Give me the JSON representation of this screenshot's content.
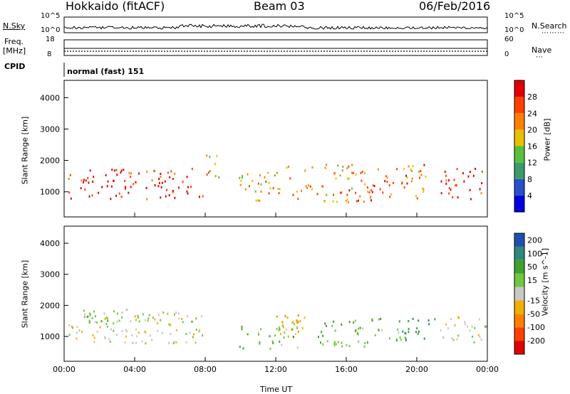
{
  "header": {
    "station": "Hokkaido (fitACF)",
    "beam": "Beam 03",
    "date": "06/Feb/2016"
  },
  "top_panels": {
    "nsky_label": "N.Sky",
    "nsky_ticks": [
      "10^5",
      "10^0"
    ],
    "nsearch_label": "N.Search",
    "nsearch_ticks": [
      "10^5",
      "10^0"
    ],
    "freq_label": "Freq.",
    "freq_unit": "[MHz]",
    "freq_ticks": [
      "18",
      "8"
    ],
    "nave_label": "Nave",
    "nave_ticks": [
      "60",
      "0"
    ],
    "cpid_label": "CPID",
    "cpid_value": "normal (fast) 151"
  },
  "chart_data": [
    {
      "type": "heatmap",
      "panel": "power",
      "ylabel": "Slant Range [km]",
      "xlabel": "",
      "y_ticks": [
        "4000",
        "3000",
        "2000",
        "1000"
      ],
      "ylim": [
        200,
        4550
      ],
      "x_range_hours": [
        0,
        24
      ],
      "colorbar_label": "Power [dB]",
      "colorbar_ticks": [
        "28",
        "24",
        "20",
        "16",
        "12",
        "8",
        "4"
      ],
      "colorbar_range": [
        0,
        32
      ],
      "colors": [
        "#0000e0",
        "#2850c8",
        "#3d9a6a",
        "#58c040",
        "#e8c000",
        "#ff8000",
        "#ff4000",
        "#e00000"
      ],
      "scatter_regions": [
        {
          "t": [
            0.2,
            7.9
          ],
          "r": [
            800,
            1780
          ],
          "level": 29
        },
        {
          "t": [
            7.9,
            8.8
          ],
          "r": [
            1400,
            2300
          ],
          "level": 20
        },
        {
          "t": [
            9.9,
            12.5
          ],
          "r": [
            700,
            1700
          ],
          "level": 20
        },
        {
          "t": [
            12.5,
            17.5
          ],
          "r": [
            700,
            1900
          ],
          "level": 22
        },
        {
          "t": [
            17.5,
            20.5
          ],
          "r": [
            800,
            1900
          ],
          "level": 24
        },
        {
          "t": [
            21.3,
            23.9
          ],
          "r": [
            800,
            1780
          ],
          "level": 29
        }
      ]
    },
    {
      "type": "heatmap",
      "panel": "velocity",
      "ylabel": "Slant Range [km]",
      "xlabel": "Time UT",
      "y_ticks": [
        "4000",
        "3000",
        "2000",
        "1000"
      ],
      "ylim": [
        200,
        4550
      ],
      "x_range_hours": [
        0,
        24
      ],
      "x_ticks": [
        "00:00",
        "04:00",
        "08:00",
        "12:00",
        "16:00",
        "20:00",
        "00:00"
      ],
      "colorbar_label": "Velocity [m s^-1]",
      "colorbar_ticks": [
        "200",
        "100",
        "50",
        "15",
        "-15",
        "-50",
        "-100",
        "-200"
      ],
      "colorbar_range": [
        -250,
        250
      ],
      "colors": [
        "#e00000",
        "#ff4000",
        "#ff8000",
        "#f0b000",
        "#c8c8c8",
        "#70c840",
        "#40a030",
        "#2e8a78",
        "#1e50b0"
      ],
      "scatter_regions": [
        {
          "t": [
            0.2,
            7.9
          ],
          "r": [
            800,
            1780
          ],
          "level": 0
        },
        {
          "t": [
            1.0,
            7.5
          ],
          "r": [
            1400,
            1900
          ],
          "level": 30
        },
        {
          "t": [
            9.9,
            13.2
          ],
          "r": [
            600,
            1500
          ],
          "level": 40
        },
        {
          "t": [
            11.8,
            14.2
          ],
          "r": [
            1000,
            1800
          ],
          "level": -40
        },
        {
          "t": [
            14.0,
            19.5
          ],
          "r": [
            700,
            1600
          ],
          "level": 40
        },
        {
          "t": [
            19.0,
            21.0
          ],
          "r": [
            900,
            1600
          ],
          "level": 110
        },
        {
          "t": [
            21.3,
            23.9
          ],
          "r": [
            800,
            1780
          ],
          "level": 0
        }
      ]
    }
  ]
}
